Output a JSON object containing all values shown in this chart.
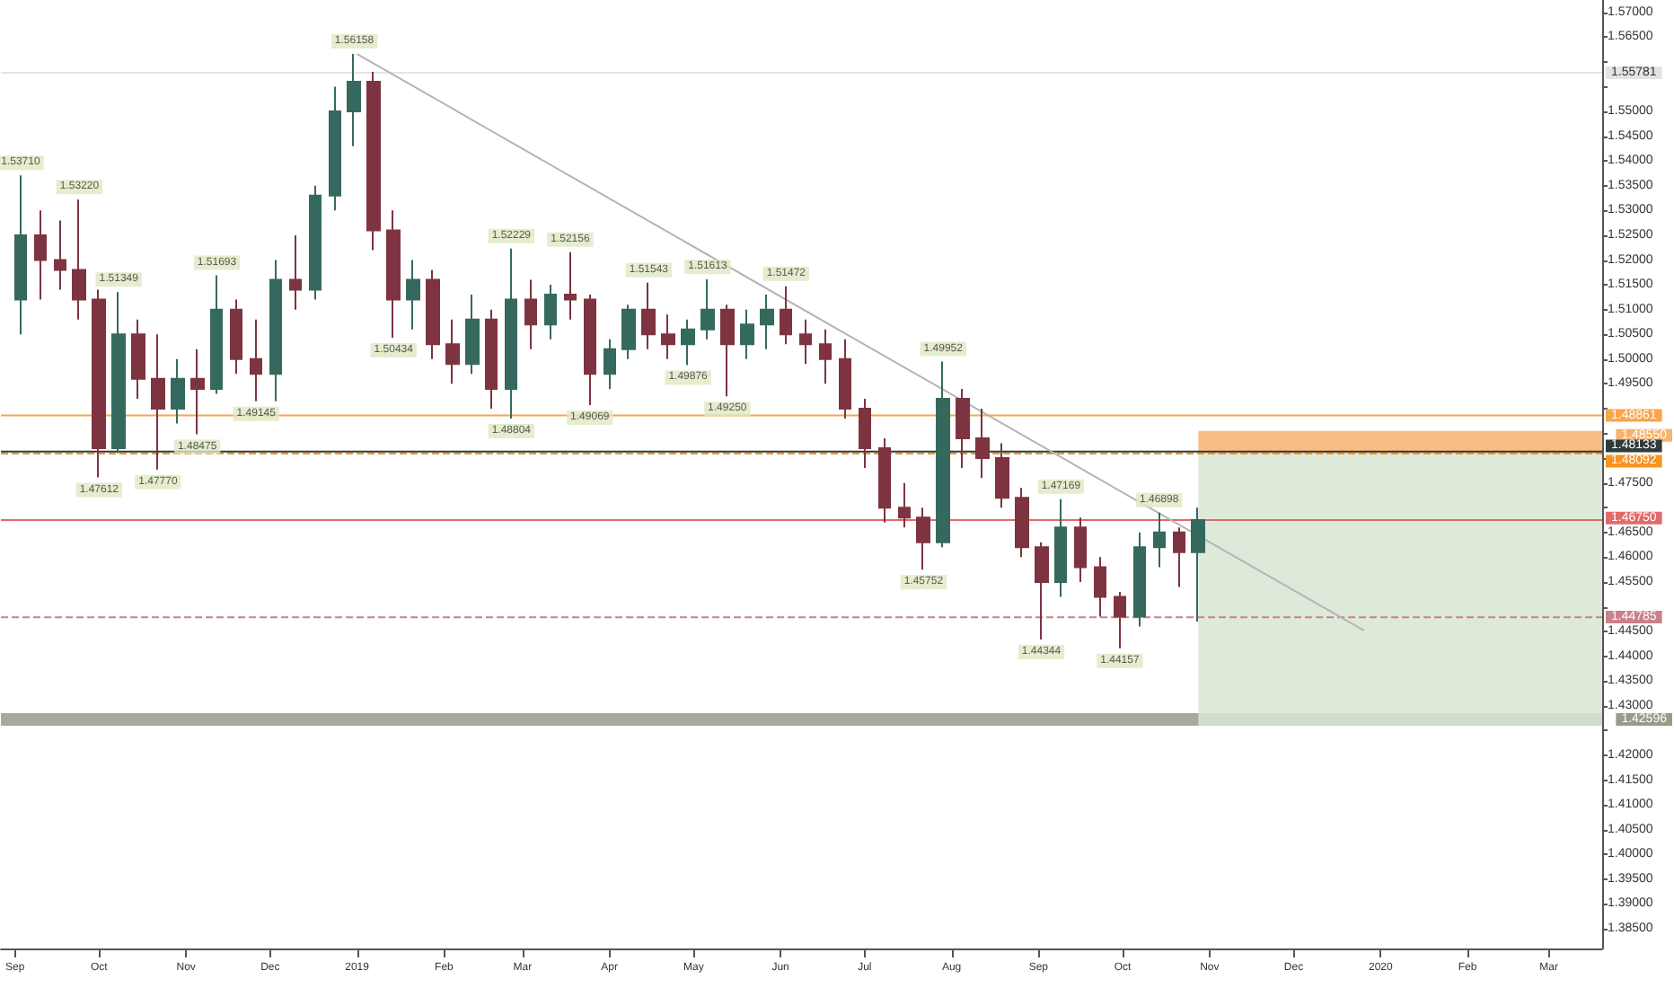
{
  "chart_data": {
    "type": "candlestick",
    "x": [
      "2018-09-03",
      "2018-09-10",
      "2018-09-17",
      "2018-09-24",
      "2018-10-01",
      "2018-10-08",
      "2018-10-15",
      "2018-10-22",
      "2018-10-29",
      "2018-11-05",
      "2018-11-12",
      "2018-11-19",
      "2018-11-26",
      "2018-12-03",
      "2018-12-10",
      "2018-12-17",
      "2018-12-24",
      "2018-12-31",
      "2019-01-07",
      "2019-01-14",
      "2019-01-21",
      "2019-01-28",
      "2019-02-04",
      "2019-02-11",
      "2019-02-18",
      "2019-02-25",
      "2019-03-04",
      "2019-03-11",
      "2019-03-18",
      "2019-03-25",
      "2019-04-01",
      "2019-04-08",
      "2019-04-15",
      "2019-04-22",
      "2019-04-29",
      "2019-05-06",
      "2019-05-13",
      "2019-05-20",
      "2019-05-27",
      "2019-06-03",
      "2019-06-10",
      "2019-06-17",
      "2019-06-24",
      "2019-07-01",
      "2019-07-08",
      "2019-07-15",
      "2019-07-22",
      "2019-07-29",
      "2019-08-05",
      "2019-08-12",
      "2019-08-19",
      "2019-08-26",
      "2019-09-02",
      "2019-09-09",
      "2019-09-16",
      "2019-09-23",
      "2019-09-30",
      "2019-10-07",
      "2019-10-14",
      "2019-10-21",
      "2019-10-28"
    ],
    "ohlc": [
      [
        1.512,
        1.5371,
        1.505,
        1.525
      ],
      [
        1.525,
        1.53,
        1.512,
        1.52
      ],
      [
        1.52,
        1.528,
        1.514,
        1.518
      ],
      [
        1.518,
        1.5322,
        1.508,
        1.512
      ],
      [
        1.512,
        1.514,
        1.4761,
        1.482
      ],
      [
        1.482,
        1.5135,
        1.481,
        1.505
      ],
      [
        1.505,
        1.508,
        1.492,
        1.496
      ],
      [
        1.496,
        1.505,
        1.4777,
        1.49
      ],
      [
        1.49,
        1.5,
        1.487,
        1.496
      ],
      [
        1.496,
        1.502,
        1.4848,
        1.494
      ],
      [
        1.494,
        1.5169,
        1.493,
        1.51
      ],
      [
        1.51,
        1.512,
        1.497,
        1.5
      ],
      [
        1.5,
        1.508,
        1.4915,
        1.497
      ],
      [
        1.497,
        1.52,
        1.4915,
        1.516
      ],
      [
        1.516,
        1.525,
        1.51,
        1.514
      ],
      [
        1.514,
        1.535,
        1.512,
        1.533
      ],
      [
        1.533,
        1.555,
        1.53,
        1.55
      ],
      [
        1.55,
        1.5616,
        1.543,
        1.556
      ],
      [
        1.556,
        1.558,
        1.522,
        1.526
      ],
      [
        1.526,
        1.53,
        1.5043,
        1.512
      ],
      [
        1.512,
        1.52,
        1.506,
        1.516
      ],
      [
        1.516,
        1.518,
        1.5,
        1.503
      ],
      [
        1.503,
        1.508,
        1.495,
        1.499
      ],
      [
        1.499,
        1.513,
        1.497,
        1.508
      ],
      [
        1.508,
        1.51,
        1.49,
        1.494
      ],
      [
        1.494,
        1.5223,
        1.488,
        1.512
      ],
      [
        1.512,
        1.516,
        1.502,
        1.507
      ],
      [
        1.507,
        1.515,
        1.504,
        1.513
      ],
      [
        1.513,
        1.5216,
        1.508,
        1.512
      ],
      [
        1.512,
        1.513,
        1.4907,
        1.497
      ],
      [
        1.497,
        1.504,
        1.494,
        1.502
      ],
      [
        1.502,
        1.511,
        1.5,
        1.51
      ],
      [
        1.51,
        1.5154,
        1.502,
        1.505
      ],
      [
        1.505,
        1.509,
        1.5,
        1.503
      ],
      [
        1.503,
        1.508,
        1.4988,
        1.506
      ],
      [
        1.506,
        1.5161,
        1.504,
        1.51
      ],
      [
        1.51,
        1.511,
        1.4925,
        1.503
      ],
      [
        1.503,
        1.51,
        1.5,
        1.507
      ],
      [
        1.507,
        1.513,
        1.502,
        1.51
      ],
      [
        1.51,
        1.5147,
        1.503,
        1.505
      ],
      [
        1.505,
        1.508,
        1.499,
        1.503
      ],
      [
        1.503,
        1.506,
        1.495,
        1.5
      ],
      [
        1.5,
        1.504,
        1.488,
        1.49
      ],
      [
        1.49,
        1.492,
        1.478,
        1.482
      ],
      [
        1.482,
        1.484,
        1.467,
        1.47
      ],
      [
        1.47,
        1.475,
        1.466,
        1.468
      ],
      [
        1.468,
        1.47,
        1.4575,
        1.463
      ],
      [
        1.463,
        1.4995,
        1.462,
        1.492
      ],
      [
        1.492,
        1.494,
        1.478,
        1.484
      ],
      [
        1.484,
        1.49,
        1.476,
        1.48
      ],
      [
        1.48,
        1.483,
        1.47,
        1.472
      ],
      [
        1.472,
        1.474,
        1.46,
        1.462
      ],
      [
        1.462,
        1.463,
        1.4434,
        1.455
      ],
      [
        1.455,
        1.4717,
        1.452,
        1.466
      ],
      [
        1.466,
        1.468,
        1.455,
        1.458
      ],
      [
        1.458,
        1.46,
        1.448,
        1.452
      ],
      [
        1.452,
        1.453,
        1.4416,
        1.448
      ],
      [
        1.448,
        1.465,
        1.446,
        1.462
      ],
      [
        1.462,
        1.469,
        1.458,
        1.465
      ],
      [
        1.465,
        1.466,
        1.454,
        1.461
      ],
      [
        1.461,
        1.47,
        1.447,
        1.4675
      ]
    ],
    "colors": [
      "#35695e",
      "#7d3440",
      "#7d3440",
      "#7d3440",
      "#7d3440",
      "#35695e",
      "#7d3440",
      "#7d3440",
      "#35695e",
      "#7d3440",
      "#35695e",
      "#7d3440",
      "#7d3440",
      "#35695e",
      "#7d3440",
      "#35695e",
      "#35695e",
      "#35695e",
      "#7d3440",
      "#7d3440",
      "#35695e",
      "#7d3440",
      "#7d3440",
      "#35695e",
      "#7d3440",
      "#35695e",
      "#7d3440",
      "#35695e",
      "#7d3440",
      "#7d3440",
      "#35695e",
      "#35695e",
      "#7d3440",
      "#7d3440",
      "#35695e",
      "#35695e",
      "#7d3440",
      "#35695e",
      "#35695e",
      "#7d3440",
      "#7d3440",
      "#7d3440",
      "#7d3440",
      "#7d3440",
      "#7d3440",
      "#7d3440",
      "#7d3440",
      "#35695e",
      "#7d3440",
      "#7d3440",
      "#7d3440",
      "#7d3440",
      "#7d3440",
      "#35695e",
      "#7d3440",
      "#7d3440",
      "#7d3440",
      "#35695e",
      "#35695e",
      "#7d3440",
      "#35695e"
    ],
    "series": [
      {
        "type": "line",
        "x": [
          "2019-01-01",
          "2019-12-26"
        ],
        "values": [
          1.5616,
          1.4452
        ],
        "color": "#b4b4b4"
      }
    ],
    "xlim": [
      "2018-08-27",
      "2020-03-20"
    ],
    "xticks": [
      {
        "value": "2018-09-01",
        "label": "Sep"
      },
      {
        "value": "2018-10-01",
        "label": "Oct"
      },
      {
        "value": "2018-11-01",
        "label": "Nov"
      },
      {
        "value": "2018-12-01",
        "label": "Dec"
      },
      {
        "value": "2019-01-01",
        "label": "2019"
      },
      {
        "value": "2019-02-01",
        "label": "Feb"
      },
      {
        "value": "2019-03-01",
        "label": "Mar"
      },
      {
        "value": "2019-04-01",
        "label": "Apr"
      },
      {
        "value": "2019-05-01",
        "label": "May"
      },
      {
        "value": "2019-06-01",
        "label": "Jun"
      },
      {
        "value": "2019-07-01",
        "label": "Jul"
      },
      {
        "value": "2019-08-01",
        "label": "Aug"
      },
      {
        "value": "2019-09-01",
        "label": "Sep"
      },
      {
        "value": "2019-10-01",
        "label": "Oct"
      },
      {
        "value": "2019-11-01",
        "label": "Nov"
      },
      {
        "value": "2019-12-01",
        "label": "Dec"
      },
      {
        "value": "2020-01-01",
        "label": "2020"
      },
      {
        "value": "2020-02-01",
        "label": "Feb"
      },
      {
        "value": "2020-03-01",
        "label": "Mar"
      }
    ],
    "ylim": [
      1.381,
      1.5725
    ],
    "yticks": [
      {
        "value": 1.385,
        "label": "1.38500"
      },
      {
        "value": 1.39,
        "label": "1.39000"
      },
      {
        "value": 1.395,
        "label": "1.39500"
      },
      {
        "value": 1.4,
        "label": "1.40000"
      },
      {
        "value": 1.405,
        "label": "1.40500"
      },
      {
        "value": 1.41,
        "label": "1.41000"
      },
      {
        "value": 1.415,
        "label": "1.41500"
      },
      {
        "value": 1.42,
        "label": "1.42000"
      },
      {
        "value": 1.425,
        "label": null
      },
      {
        "value": 1.43,
        "label": "1.43000"
      },
      {
        "value": 1.435,
        "label": "1.43500"
      },
      {
        "value": 1.44,
        "label": "1.44000"
      },
      {
        "value": 1.445,
        "label": "1.44500"
      },
      {
        "value": 1.45,
        "label": null
      },
      {
        "value": 1.455,
        "label": "1.45500"
      },
      {
        "value": 1.46,
        "label": "1.46000"
      },
      {
        "value": 1.465,
        "label": "1.46500"
      },
      {
        "value": 1.47,
        "label": null
      },
      {
        "value": 1.475,
        "label": "1.47500"
      },
      {
        "value": 1.48,
        "label": null
      },
      {
        "value": 1.485,
        "label": null
      },
      {
        "value": 1.49,
        "label": null
      },
      {
        "value": 1.495,
        "label": "1.49500"
      },
      {
        "value": 1.5,
        "label": "1.50000"
      },
      {
        "value": 1.505,
        "label": "1.50500"
      },
      {
        "value": 1.51,
        "label": "1.51000"
      },
      {
        "value": 1.515,
        "label": "1.51500"
      },
      {
        "value": 1.52,
        "label": "1.52000"
      },
      {
        "value": 1.525,
        "label": "1.52500"
      },
      {
        "value": 1.53,
        "label": "1.53000"
      },
      {
        "value": 1.535,
        "label": "1.53500"
      },
      {
        "value": 1.54,
        "label": "1.54000"
      },
      {
        "value": 1.545,
        "label": "1.54500"
      },
      {
        "value": 1.55,
        "label": "1.55000"
      },
      {
        "value": 1.555,
        "label": null
      },
      {
        "value": 1.56,
        "label": null
      },
      {
        "value": 1.565,
        "label": "1.56500"
      },
      {
        "value": 1.57,
        "label": "1.57000"
      }
    ],
    "ref_lines": [
      {
        "axis": "y",
        "value": 1.55781,
        "label": "1.55781",
        "color": "#e4e4e4"
      },
      {
        "axis": "y",
        "value": 1.48861,
        "label": "1.48861",
        "color": "#f7a64c"
      },
      {
        "axis": "y",
        "value": 1.48133,
        "label": "1.48133",
        "color": "#2f3a3a"
      },
      {
        "axis": "y",
        "value": 1.48092,
        "label": "1.48092",
        "color": "#f7931e",
        "line_style": "dashed"
      },
      {
        "axis": "y",
        "value": 1.4675,
        "label": "1.46750",
        "color": "#e46a6a"
      },
      {
        "axis": "y",
        "value": 1.44785,
        "label": "1.44785",
        "color": "#c9818c",
        "line_style": "dashed"
      }
    ],
    "bands": [
      {
        "axis": "y",
        "from": 1.42596,
        "to": 1.4285,
        "label": "1.42596",
        "color": "#9a9a8a"
      },
      {
        "axis": "y",
        "from": 1.48092,
        "to": 1.4855,
        "label": "1.48550",
        "color": "#f7b26e"
      },
      {
        "axis": "y",
        "from": 1.42596,
        "to": 1.48092,
        "color": "#d8e6d2"
      }
    ],
    "annotations": [
      {
        "text": "1.53710",
        "x": "2018-09-03",
        "y": 1.5371
      },
      {
        "text": "1.53220",
        "x": "2018-09-24",
        "y": 1.5322
      },
      {
        "text": "1.47612",
        "x": "2018-10-01",
        "y": 1.4761
      },
      {
        "text": "1.51349",
        "x": "2018-10-08",
        "y": 1.5135
      },
      {
        "text": "1.47770",
        "x": "2018-10-22",
        "y": 1.4777
      },
      {
        "text": "1.48475",
        "x": "2018-11-05",
        "y": 1.4848
      },
      {
        "text": "1.51693",
        "x": "2018-11-12",
        "y": 1.5169
      },
      {
        "text": "1.49145",
        "x": "2018-11-26",
        "y": 1.4915
      },
      {
        "text": "1.56158",
        "x": "2018-12-31",
        "y": 1.5616
      },
      {
        "text": "1.50434",
        "x": "2019-01-14",
        "y": 1.5043
      },
      {
        "text": "1.48804",
        "x": "2019-02-25",
        "y": 1.488
      },
      {
        "text": "1.52229",
        "x": "2019-02-25",
        "y": 1.5223
      },
      {
        "text": "1.52156",
        "x": "2019-03-18",
        "y": 1.5216
      },
      {
        "text": "1.49069",
        "x": "2019-03-25",
        "y": 1.4907
      },
      {
        "text": "1.51543",
        "x": "2019-04-15",
        "y": 1.5154
      },
      {
        "text": "1.49876",
        "x": "2019-04-29",
        "y": 1.4988
      },
      {
        "text": "1.51613",
        "x": "2019-05-06",
        "y": 1.5161
      },
      {
        "text": "1.49250",
        "x": "2019-05-13",
        "y": 1.4925
      },
      {
        "text": "1.51472",
        "x": "2019-06-03",
        "y": 1.5147
      },
      {
        "text": "1.45752",
        "x": "2019-07-22",
        "y": 1.4575
      },
      {
        "text": "1.49952",
        "x": "2019-07-29",
        "y": 1.4995
      },
      {
        "text": "1.44344",
        "x": "2019-09-02",
        "y": 1.4434
      },
      {
        "text": "1.47169",
        "x": "2019-09-09",
        "y": 1.4717
      },
      {
        "text": "1.44157",
        "x": "2019-09-30",
        "y": 1.4416
      },
      {
        "text": "1.46898",
        "x": "2019-10-14",
        "y": 1.469
      }
    ],
    "grid": false
  }
}
